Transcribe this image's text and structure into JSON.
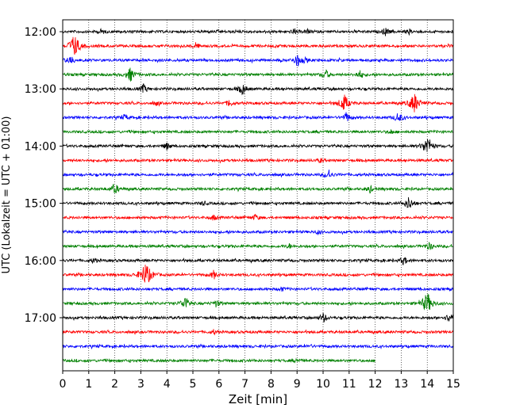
{
  "chart_data": {
    "type": "line",
    "title": "",
    "xlabel": "Zeit  [min]",
    "ylabel": "UTC (Lokalzeit = UTC + 01:00)",
    "x_ticks": [
      "0",
      "1",
      "2",
      "3",
      "4",
      "5",
      "6",
      "7",
      "8",
      "9",
      "10",
      "11",
      "12",
      "13",
      "14",
      "15"
    ],
    "xlim": [
      0,
      15
    ],
    "y_ticks": [
      "12:00",
      "13:00",
      "14:00",
      "15:00",
      "16:00",
      "17:00"
    ],
    "grid": "vertical dotted lines at each minute",
    "trace_interval_minutes": 15,
    "trace_colors": [
      "#000000",
      "#ff0000",
      "#0000ff",
      "#008000"
    ],
    "traces": [
      {
        "time": "12:00",
        "color": "#000000",
        "end_min": 15,
        "events": [
          [
            1.5,
            0.4
          ],
          [
            8.9,
            0.4
          ],
          [
            9.4,
            0.3
          ],
          [
            12.4,
            0.6
          ],
          [
            13.3,
            0.3
          ]
        ]
      },
      {
        "time": "12:15",
        "color": "#ff0000",
        "end_min": 15,
        "events": [
          [
            0.45,
            1.7
          ],
          [
            5.1,
            0.5
          ]
        ]
      },
      {
        "time": "12:30",
        "color": "#0000ff",
        "end_min": 15,
        "events": [
          [
            0.3,
            0.7
          ],
          [
            9.0,
            0.9
          ],
          [
            9.3,
            0.3
          ]
        ]
      },
      {
        "time": "12:45",
        "color": "#008000",
        "end_min": 15,
        "events": [
          [
            2.6,
            1.0
          ],
          [
            10.1,
            0.7
          ],
          [
            11.4,
            0.6
          ]
        ]
      },
      {
        "time": "13:00",
        "color": "#000000",
        "end_min": 15,
        "events": [
          [
            3.1,
            0.6
          ],
          [
            6.9,
            0.8
          ]
        ]
      },
      {
        "time": "13:15",
        "color": "#ff0000",
        "end_min": 15,
        "events": [
          [
            3.6,
            0.3
          ],
          [
            6.4,
            0.5
          ],
          [
            10.8,
            1.3
          ],
          [
            13.5,
            1.5
          ]
        ]
      },
      {
        "time": "13:30",
        "color": "#0000ff",
        "end_min": 15,
        "events": [
          [
            2.4,
            0.4
          ],
          [
            10.9,
            0.7
          ],
          [
            12.9,
            0.8
          ]
        ]
      },
      {
        "time": "13:45",
        "color": "#008000",
        "end_min": 15,
        "events": [
          [
            12.6,
            0.3
          ]
        ]
      },
      {
        "time": "14:00",
        "color": "#000000",
        "end_min": 15,
        "events": [
          [
            4.0,
            0.5
          ],
          [
            14.0,
            1.4
          ]
        ]
      },
      {
        "time": "14:15",
        "color": "#ff0000",
        "end_min": 15,
        "events": [
          [
            9.9,
            0.3
          ]
        ]
      },
      {
        "time": "14:30",
        "color": "#0000ff",
        "end_min": 15,
        "events": [
          [
            10.2,
            0.7
          ]
        ]
      },
      {
        "time": "14:45",
        "color": "#008000",
        "end_min": 15,
        "events": [
          [
            2.0,
            0.8
          ],
          [
            11.8,
            0.5
          ]
        ]
      },
      {
        "time": "15:00",
        "color": "#000000",
        "end_min": 15,
        "events": [
          [
            5.4,
            0.3
          ],
          [
            13.3,
            1.0
          ]
        ]
      },
      {
        "time": "15:15",
        "color": "#ff0000",
        "end_min": 15,
        "events": [
          [
            5.8,
            0.4
          ],
          [
            7.4,
            0.4
          ]
        ]
      },
      {
        "time": "15:30",
        "color": "#0000ff",
        "end_min": 15,
        "events": [
          [
            9.8,
            0.3
          ]
        ]
      },
      {
        "time": "15:45",
        "color": "#008000",
        "end_min": 15,
        "events": [
          [
            8.7,
            0.3
          ],
          [
            14.1,
            0.6
          ]
        ]
      },
      {
        "time": "16:00",
        "color": "#000000",
        "end_min": 15,
        "events": [
          [
            1.2,
            0.4
          ],
          [
            13.1,
            0.6
          ]
        ]
      },
      {
        "time": "16:15",
        "color": "#ff0000",
        "end_min": 15,
        "events": [
          [
            3.2,
            1.8
          ],
          [
            5.8,
            0.6
          ]
        ]
      },
      {
        "time": "16:30",
        "color": "#0000ff",
        "end_min": 15,
        "events": [
          [
            8.4,
            0.3
          ]
        ]
      },
      {
        "time": "16:45",
        "color": "#008000",
        "end_min": 15,
        "events": [
          [
            4.7,
            1.0
          ],
          [
            5.9,
            0.5
          ],
          [
            14.0,
            1.6
          ]
        ]
      },
      {
        "time": "17:00",
        "color": "#000000",
        "end_min": 15,
        "events": [
          [
            10.0,
            0.7
          ],
          [
            14.9,
            1.0
          ]
        ]
      },
      {
        "time": "17:15",
        "color": "#ff0000",
        "end_min": 15,
        "events": [
          [
            5.8,
            0.3
          ]
        ]
      },
      {
        "time": "17:30",
        "color": "#0000ff",
        "end_min": 15,
        "events": [
          [
            9.5,
            0.2
          ]
        ]
      },
      {
        "time": "17:45",
        "color": "#008000",
        "end_min": 12,
        "events": [
          [
            9.0,
            0.3
          ]
        ]
      }
    ]
  }
}
